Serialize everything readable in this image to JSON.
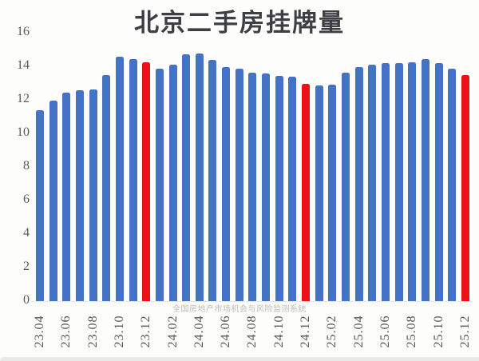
{
  "title": "北京二手房挂牌量",
  "watermark": "全国房地产市场机会与风险监测系统",
  "colors": {
    "bar_blue": "#4472c4",
    "bar_red": "#ee1111",
    "title_text": "#3e3e45",
    "axis_text": "#595959",
    "watermark_text": "#bdbdb8"
  },
  "chart_data": {
    "type": "bar",
    "title": "北京二手房挂牌量",
    "xlabel": "",
    "ylabel": "",
    "ylim": [
      0,
      16
    ],
    "yticks": [
      0,
      2,
      4,
      6,
      8,
      10,
      12,
      14,
      16
    ],
    "grid": false,
    "legend": false,
    "xtick_label_step": 2,
    "categories": [
      "23.04",
      "23.05",
      "23.06",
      "23.07",
      "23.08",
      "23.09",
      "23.10",
      "23.11",
      "23.12",
      "24.01",
      "24.02",
      "24.03",
      "24.04",
      "24.05",
      "24.06",
      "24.07",
      "24.08",
      "24.09",
      "24.10",
      "24.11",
      "24.12",
      "25.01",
      "25.02",
      "25.03",
      "25.04",
      "25.05",
      "25.06",
      "25.07",
      "25.08",
      "25.09",
      "25.10",
      "25.11",
      "25.12"
    ],
    "values": [
      11.4,
      11.95,
      12.45,
      12.55,
      12.6,
      13.5,
      14.55,
      14.45,
      14.25,
      13.85,
      14.1,
      14.7,
      14.75,
      14.4,
      13.95,
      13.85,
      13.6,
      13.55,
      13.45,
      13.4,
      12.95,
      12.85,
      12.9,
      13.6,
      13.95,
      14.1,
      14.2,
      14.2,
      14.25,
      14.45,
      14.2,
      13.85,
      13.5
    ],
    "highlighted_categories": [
      "23.12",
      "24.12",
      "25.12"
    ]
  }
}
